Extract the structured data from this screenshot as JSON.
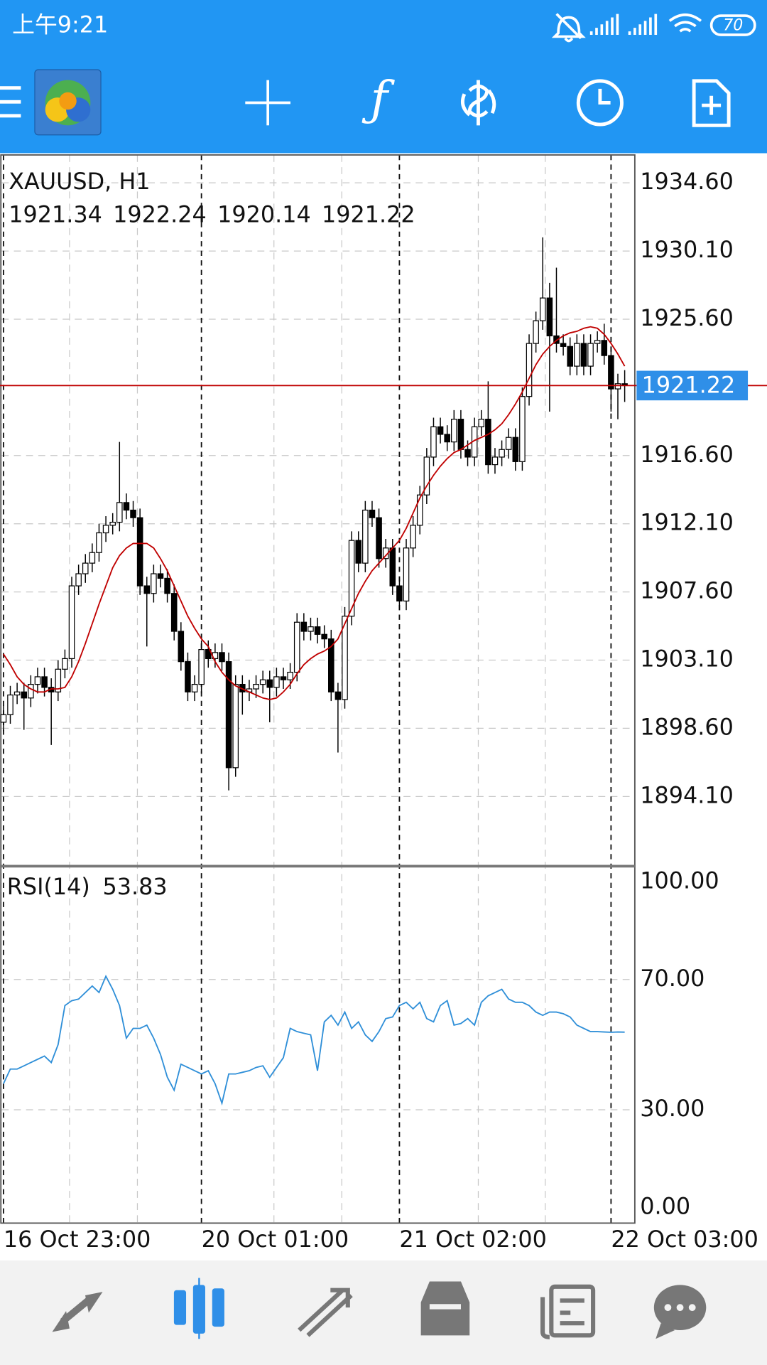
{
  "status_bar": {
    "time": "上午9:21",
    "battery": "70"
  },
  "chart_data": [
    {
      "type": "candlestick",
      "title": "XAUUSD, H1",
      "categories": [
        "16 Oct 23:00",
        null,
        null,
        null,
        null,
        null,
        null,
        null,
        null,
        null,
        null,
        null,
        null,
        null,
        null,
        null,
        null,
        null,
        null,
        null,
        null,
        null,
        null,
        null,
        null,
        null,
        null,
        null,
        null,
        "20 Oct 01:00",
        null,
        null,
        null,
        null,
        null,
        null,
        null,
        null,
        null,
        null,
        null,
        null,
        null,
        null,
        null,
        null,
        null,
        null,
        null,
        null,
        null,
        null,
        null,
        null,
        null,
        null,
        null,
        null,
        "21 Oct 02:00",
        null,
        null,
        null,
        null,
        null,
        null,
        null,
        null,
        null,
        null,
        null,
        null,
        null,
        null,
        null,
        null,
        null,
        null,
        null,
        null,
        null,
        null,
        null,
        null,
        null,
        null,
        null,
        null,
        null,
        null,
        "22 Oct 03:00",
        null,
        null
      ],
      "open": [
        1899.0,
        1899.5,
        1900.8,
        1901.0,
        1900.6,
        1901.5,
        1902.0,
        1901.3,
        1901.0,
        1902.5,
        1903.2,
        1908.0,
        1908.8,
        1909.5,
        1910.2,
        1911.5,
        1912.0,
        1912.2,
        1913.5,
        1913.0,
        1912.5,
        1908.0,
        1907.5,
        1908.8,
        1908.5,
        1907.5,
        1905.0,
        1903.0,
        1901.0,
        1901.5,
        1903.8,
        1903.2,
        1903.6,
        1903.0,
        1896.0,
        1901.5,
        1901.0,
        1901.2,
        1901.5,
        1901.8,
        1901.3,
        1902.0,
        1901.8,
        1902.3,
        1905.6,
        1905.0,
        1905.3,
        1904.8,
        1904.5,
        1901.0,
        1900.5,
        1906.0,
        1911.0,
        1909.5,
        1913.0,
        1912.5,
        1909.8,
        1910.5,
        1908.0,
        1907.0,
        1910.5,
        1912.0,
        1914.0,
        1916.5,
        1918.5,
        1918.0,
        1917.5,
        1919.0,
        1917.0,
        1916.5,
        1918.5,
        1919.0,
        1916.0,
        1916.5,
        1917.0,
        1917.8,
        1916.2,
        1920.5,
        1924.0,
        1925.5,
        1927.0,
        1924.5,
        1924.0,
        1923.8,
        1922.5,
        1924.0,
        1922.5,
        1924.0,
        1924.2,
        1923.2,
        1921.0,
        1921.34
      ],
      "high": [
        1900.1,
        1901.4,
        1901.6,
        1901.6,
        1902.1,
        1902.6,
        1902.6,
        1901.9,
        1903.1,
        1903.8,
        1908.6,
        1909.4,
        1910.1,
        1910.8,
        1912.1,
        1912.6,
        1912.8,
        1917.5,
        1914.1,
        1913.6,
        1913.1,
        1908.6,
        1909.4,
        1909.4,
        1909.1,
        1908.1,
        1905.6,
        1903.6,
        1902.1,
        1904.4,
        1904.4,
        1904.2,
        1904.2,
        1903.6,
        1902.1,
        1902.1,
        1901.8,
        1902.1,
        1902.4,
        1902.4,
        1902.6,
        1902.6,
        1902.9,
        1906.2,
        1906.2,
        1905.9,
        1905.9,
        1905.4,
        1905.1,
        1901.6,
        1906.6,
        1911.6,
        1911.6,
        1913.6,
        1913.6,
        1913.1,
        1911.1,
        1911.1,
        1908.6,
        1911.1,
        1912.6,
        1914.6,
        1917.1,
        1919.1,
        1919.1,
        1918.6,
        1919.6,
        1919.6,
        1917.6,
        1919.1,
        1919.6,
        1921.5,
        1917.1,
        1917.6,
        1918.4,
        1918.4,
        1921.1,
        1924.6,
        1926.1,
        1931.0,
        1928.0,
        1929.0,
        1924.6,
        1924.4,
        1924.6,
        1924.6,
        1924.6,
        1924.8,
        1925.3,
        1923.8,
        1922.0,
        1922.24
      ],
      "low": [
        1898.4,
        1898.9,
        1900.2,
        1898.5,
        1900.0,
        1900.9,
        1900.7,
        1897.5,
        1900.4,
        1901.9,
        1902.6,
        1907.4,
        1908.2,
        1908.9,
        1909.6,
        1910.9,
        1911.4,
        1911.6,
        1912.4,
        1911.9,
        1907.4,
        1904.0,
        1906.9,
        1907.9,
        1906.9,
        1904.4,
        1902.4,
        1900.4,
        1900.4,
        1900.9,
        1902.6,
        1902.6,
        1902.4,
        1894.5,
        1895.4,
        1899.5,
        1900.4,
        1900.6,
        1900.9,
        1899.0,
        1900.7,
        1901.2,
        1901.2,
        1901.7,
        1904.4,
        1904.4,
        1904.2,
        1903.9,
        1900.4,
        1897.0,
        1899.9,
        1905.4,
        1908.9,
        1908.9,
        1911.9,
        1909.2,
        1909.2,
        1907.4,
        1906.4,
        1906.4,
        1909.9,
        1911.4,
        1913.4,
        1915.9,
        1917.4,
        1916.9,
        1916.9,
        1916.4,
        1915.9,
        1915.9,
        1917.9,
        1915.4,
        1915.4,
        1915.9,
        1916.4,
        1915.6,
        1915.6,
        1919.9,
        1923.4,
        1924.9,
        1919.5,
        1923.4,
        1923.2,
        1921.9,
        1921.9,
        1921.9,
        1921.9,
        1923.4,
        1922.6,
        1919.5,
        1919.0,
        1920.14
      ],
      "close": [
        1899.5,
        1900.8,
        1901.0,
        1900.6,
        1901.5,
        1902.0,
        1901.3,
        1901.0,
        1902.5,
        1903.2,
        1908.0,
        1908.8,
        1909.5,
        1910.2,
        1911.5,
        1912.0,
        1912.2,
        1913.5,
        1913.0,
        1912.5,
        1908.0,
        1907.5,
        1908.8,
        1908.5,
        1907.5,
        1905.0,
        1903.0,
        1901.0,
        1901.5,
        1903.8,
        1903.2,
        1903.6,
        1903.0,
        1896.0,
        1901.5,
        1901.0,
        1901.2,
        1901.5,
        1901.8,
        1901.3,
        1902.0,
        1901.8,
        1902.3,
        1905.6,
        1905.0,
        1905.3,
        1904.8,
        1904.5,
        1901.0,
        1900.5,
        1906.0,
        1911.0,
        1909.5,
        1913.0,
        1912.5,
        1909.8,
        1910.5,
        1908.0,
        1907.0,
        1910.5,
        1912.0,
        1914.0,
        1916.5,
        1918.5,
        1918.0,
        1917.5,
        1919.0,
        1917.0,
        1916.5,
        1918.5,
        1919.0,
        1916.0,
        1916.5,
        1917.0,
        1917.8,
        1916.2,
        1920.5,
        1924.0,
        1925.5,
        1927.0,
        1924.5,
        1924.0,
        1923.8,
        1922.5,
        1924.0,
        1922.5,
        1924.0,
        1924.2,
        1923.2,
        1921.0,
        1921.34,
        1921.22
      ],
      "ma": {
        "color": "#c00000",
        "values": [
          1903.5,
          1902.8,
          1902.0,
          1901.5,
          1901.2,
          1901.0,
          1901.0,
          1901.2,
          1901.2,
          1901.3,
          1902.0,
          1903.0,
          1904.2,
          1905.5,
          1906.8,
          1908.0,
          1909.2,
          1910.0,
          1910.5,
          1910.8,
          1910.8,
          1910.8,
          1910.5,
          1909.8,
          1909.0,
          1908.0,
          1907.0,
          1906.0,
          1905.2,
          1904.5,
          1904.0,
          1903.0,
          1902.3,
          1901.8,
          1901.4,
          1901.2,
          1901.0,
          1900.8,
          1900.6,
          1900.5,
          1900.6,
          1901.0,
          1901.5,
          1902.2,
          1902.8,
          1903.2,
          1903.5,
          1903.7,
          1904.0,
          1904.5,
          1905.5,
          1906.5,
          1907.5,
          1908.3,
          1909.0,
          1909.5,
          1910.0,
          1910.5,
          1911.0,
          1911.8,
          1912.8,
          1913.8,
          1914.6,
          1915.3,
          1915.9,
          1916.4,
          1916.8,
          1917.0,
          1917.3,
          1917.6,
          1917.8,
          1918.0,
          1918.3,
          1918.7,
          1919.3,
          1920.0,
          1920.8,
          1921.7,
          1922.6,
          1923.3,
          1923.8,
          1924.2,
          1924.5,
          1924.7,
          1924.8,
          1925.0,
          1925.1,
          1925.0,
          1924.6,
          1924.0,
          1923.3,
          1922.5
        ]
      },
      "up_color": "#ffffff",
      "down_color": "#000000",
      "price_line_color": "#c00000",
      "price_label_color": "#2f8fe8",
      "ylim": [
        1889.5,
        1936.44
      ],
      "yticks": [
        {
          "value": 1934.6,
          "label": "1934.60"
        },
        {
          "value": 1930.1,
          "label": "1930.10"
        },
        {
          "value": 1925.6,
          "label": "1925.60"
        },
        {
          "value": 1916.6,
          "label": "1916.60"
        },
        {
          "value": 1912.1,
          "label": "1912.10"
        },
        {
          "value": 1907.6,
          "label": "1907.60"
        },
        {
          "value": 1903.1,
          "label": "1903.10"
        },
        {
          "value": 1898.6,
          "label": "1898.60"
        },
        {
          "value": 1894.1,
          "label": "1894.10"
        }
      ],
      "grid": true
    },
    {
      "type": "line",
      "label": "RSI(14)",
      "color": "#2f8fd8",
      "values": [
        38,
        42.5,
        42.5,
        43.5,
        44.5,
        45.5,
        46.5,
        44.5,
        50,
        62,
        63.5,
        64,
        66,
        68,
        66,
        71,
        67,
        62,
        52,
        55,
        55,
        56,
        52,
        47,
        40,
        36,
        44,
        43,
        42,
        41,
        42,
        38,
        32,
        41,
        41,
        41.5,
        42,
        43,
        43.5,
        40,
        43,
        46,
        55,
        54,
        53.5,
        53,
        42,
        57,
        59,
        56,
        60,
        55,
        57,
        53,
        51,
        54,
        58,
        58.5,
        62,
        63,
        61,
        63,
        58,
        57,
        62,
        63.5,
        56,
        56.5,
        58,
        56,
        63,
        65,
        66,
        67,
        64,
        63,
        63,
        62,
        60,
        59,
        60,
        60,
        59.5,
        58.5,
        56,
        55,
        54,
        54,
        53.9,
        53.8,
        53.9,
        53.83
      ],
      "ylim": [
        -4.8,
        104.8
      ],
      "yticks": [
        {
          "value": 100,
          "label": "100.00"
        },
        {
          "value": 70,
          "label": "70.00"
        },
        {
          "value": 30,
          "label": "30.00"
        },
        {
          "value": 0,
          "label": "0.00"
        }
      ],
      "grid": true
    }
  ]
}
